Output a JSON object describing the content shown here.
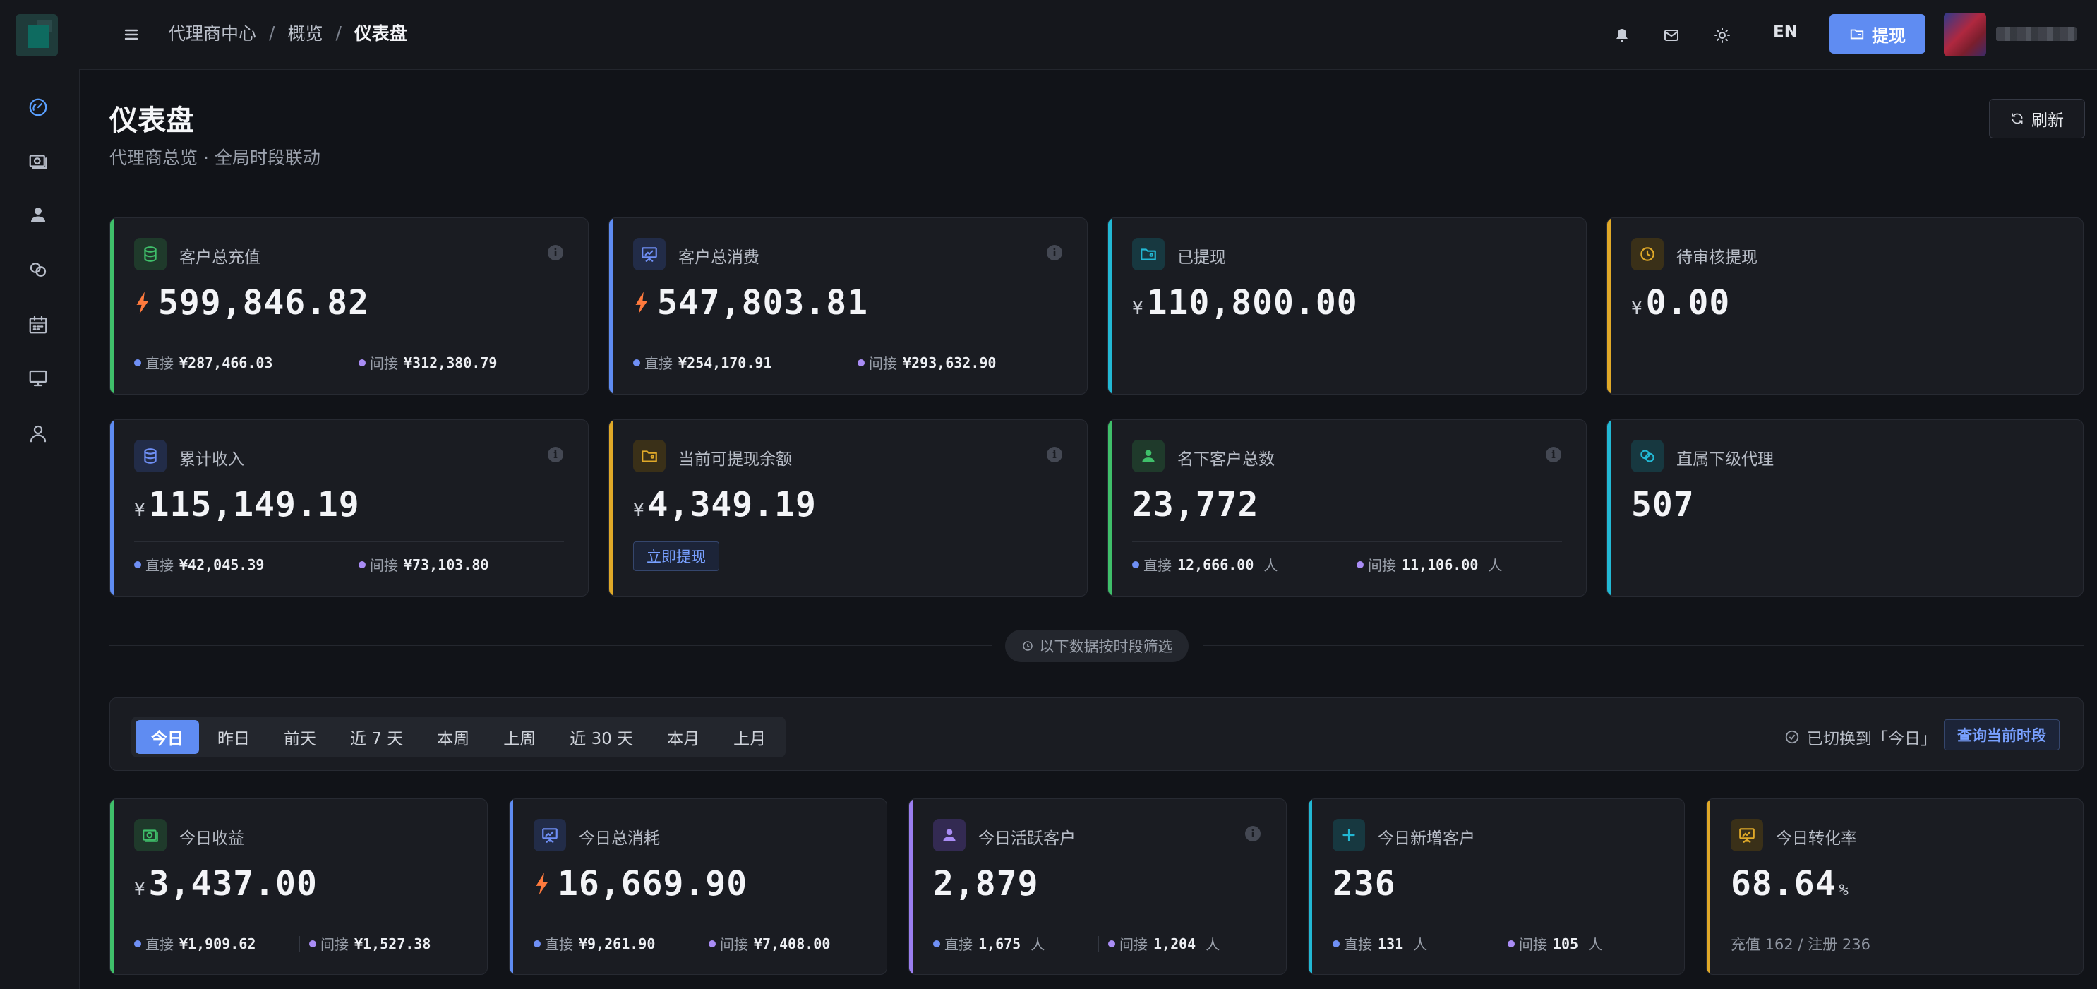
{
  "header": {
    "breadcrumbs": [
      "代理商中心",
      "概览",
      "仪表盘"
    ],
    "lang": "EN",
    "withdraw_label": "提现"
  },
  "page": {
    "title": "仪表盘",
    "subtitle": "代理商总览 · 全局时段联动",
    "refresh_label": "刷新"
  },
  "sidebar": {
    "icons": [
      "dashboard-icon",
      "money-icon",
      "user-icon",
      "link-icon",
      "calendar-icon",
      "monitor-icon",
      "profile-icon"
    ]
  },
  "cards": {
    "total_recharge": {
      "label": "客户总充值",
      "value": "599,846.82",
      "direct_label": "直接",
      "direct": "¥287,466.03",
      "indirect_label": "间接",
      "indirect": "¥312,380.79",
      "color": "#3fbf6a"
    },
    "total_consume": {
      "label": "客户总消费",
      "value": "547,803.81",
      "direct_label": "直接",
      "direct": "¥254,170.91",
      "indirect_label": "间接",
      "indirect": "¥293,632.90",
      "color": "#5f8cf2"
    },
    "withdrawn": {
      "label": "已提现",
      "currency": "¥",
      "value": "110,800.00",
      "color": "#22b8d4"
    },
    "pending": {
      "label": "待审核提现",
      "currency": "¥",
      "value": "0.00",
      "color": "#e0a928"
    },
    "total_income": {
      "label": "累计收入",
      "currency": "¥",
      "value": "115,149.19",
      "direct_label": "直接",
      "direct": "¥42,045.39",
      "indirect_label": "间接",
      "indirect": "¥73,103.80",
      "color": "#5f8cf2"
    },
    "withdrawable": {
      "label": "当前可提现余额",
      "currency": "¥",
      "value": "4,349.19",
      "button": "立即提现",
      "color": "#e0a928"
    },
    "customers": {
      "label": "名下客户总数",
      "value": "23,772",
      "direct_label": "直接",
      "direct": "12,666.00",
      "indirect_label": "间接",
      "indirect": "11,106.00",
      "unit": "人",
      "color": "#3fbf6a"
    },
    "sub_agents": {
      "label": "直属下级代理",
      "value": "507",
      "color": "#22b8d4"
    }
  },
  "section_note": "以下数据按时段筛选",
  "filter": {
    "tabs": [
      "今日",
      "昨日",
      "前天",
      "近 7 天",
      "本周",
      "上周",
      "近 30 天",
      "本月",
      "上月"
    ],
    "active": "今日",
    "switched": "已切换到「今日」",
    "query_label": "查询当前时段"
  },
  "today": {
    "income": {
      "label": "今日收益",
      "currency": "¥",
      "value": "3,437.00",
      "direct_label": "直接",
      "direct": "¥1,909.62",
      "indirect_label": "间接",
      "indirect": "¥1,527.38",
      "color": "#3fbf6a"
    },
    "consume": {
      "label": "今日总消耗",
      "value": "16,669.90",
      "direct_label": "直接",
      "direct": "¥9,261.90",
      "indirect_label": "间接",
      "indirect": "¥7,408.00",
      "color": "#5f8cf2"
    },
    "active": {
      "label": "今日活跃客户",
      "value": "2,879",
      "direct_label": "直接",
      "direct": "1,675",
      "indirect_label": "间接",
      "indirect": "1,204",
      "unit": "人",
      "color": "#9b7ef0"
    },
    "new": {
      "label": "今日新增客户",
      "value": "236",
      "direct_label": "直接",
      "direct": "131",
      "indirect_label": "间接",
      "indirect": "105",
      "unit": "人",
      "color": "#22b8d4"
    },
    "conversion": {
      "label": "今日转化率",
      "value": "68.64",
      "unit": "%",
      "note": "充值 162 / 注册 236",
      "color": "#e0a928"
    }
  },
  "colors": {
    "accent": "#5f8cf2",
    "direct_dot": "#6f8ff5",
    "indirect_dot": "#a98cf5",
    "bolt": "#ff7a3d"
  }
}
